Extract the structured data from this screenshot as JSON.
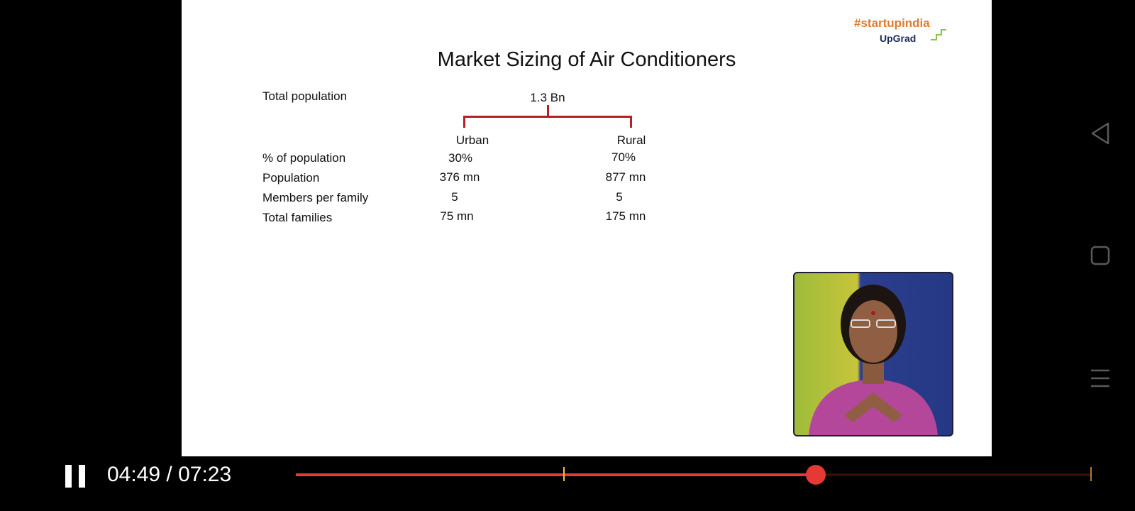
{
  "slide": {
    "logo": {
      "hashtag": "#startupindia",
      "brand": "UpGrad"
    },
    "title": "Market Sizing of Air Conditioners",
    "total_population": {
      "label": "Total population",
      "value": "1.3 Bn"
    },
    "columns": [
      "Urban",
      "Rural"
    ],
    "rows": [
      {
        "label": "% of population",
        "urban": "30%",
        "rural": "70%"
      },
      {
        "label": "Population",
        "urban": "376 mn",
        "rural": "877 mn"
      },
      {
        "label": "Members per family",
        "urban": "5",
        "rural": "5"
      },
      {
        "label": "Total families",
        "urban": "75 mn",
        "rural": "175 mn"
      }
    ]
  },
  "player": {
    "current_time": "04:49",
    "separator": " / ",
    "duration": "07:23",
    "progress_fraction": 0.653,
    "chapter_marker_fraction": 0.336,
    "colors": {
      "progress": "#e53935",
      "marker": "#f4c430"
    }
  },
  "system_nav": {
    "icons": [
      "back-icon",
      "recent-apps-icon",
      "menu-icon"
    ]
  }
}
